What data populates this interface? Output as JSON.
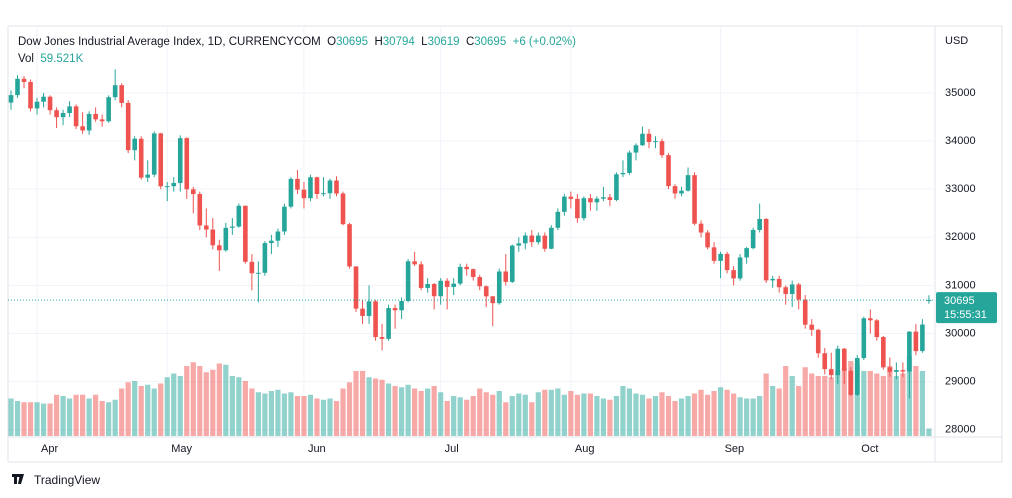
{
  "chart_data": {
    "type": "candlestick",
    "title": "Dow Jones Industrial Average Index, 1D, CURRENCYCOM",
    "ohlc_prefixes": [
      "O",
      "H",
      "L",
      "C"
    ],
    "change_label": "+6 (+0.02%)",
    "y_unit": "USD",
    "countdown": "15:55:31",
    "up_color": "#26a69a",
    "down_color": "#ef5350",
    "grid": true,
    "ylim": [
      27870,
      36350
    ],
    "yticks": [
      28000,
      29000,
      30000,
      31000,
      32000,
      33000,
      34000,
      35000
    ],
    "categories": [
      null,
      null,
      null,
      null,
      "Apr",
      null,
      null,
      null,
      null,
      null,
      null,
      null,
      null,
      null,
      null,
      null,
      null,
      null,
      null,
      null,
      null,
      null,
      null,
      null,
      "May",
      null,
      null,
      null,
      null,
      null,
      null,
      null,
      null,
      null,
      null,
      null,
      null,
      null,
      null,
      null,
      null,
      null,
      null,
      null,
      null,
      "Jun",
      null,
      null,
      null,
      null,
      null,
      null,
      null,
      null,
      null,
      null,
      null,
      null,
      null,
      null,
      null,
      null,
      null,
      null,
      null,
      null,
      "Jul",
      null,
      null,
      null,
      null,
      null,
      null,
      null,
      null,
      null,
      null,
      null,
      null,
      null,
      null,
      null,
      null,
      null,
      null,
      null,
      "Aug",
      null,
      null,
      null,
      null,
      null,
      null,
      null,
      null,
      null,
      null,
      null,
      null,
      null,
      null,
      null,
      null,
      null,
      null,
      null,
      null,
      null,
      null,
      "Sep",
      null,
      null,
      null,
      null,
      null,
      null,
      null,
      null,
      null,
      null,
      null,
      null,
      null,
      null,
      null,
      null,
      null,
      null,
      null,
      null,
      "Oct",
      null,
      null,
      null,
      null,
      null,
      null,
      null,
      null,
      null,
      null,
      null
    ],
    "open": [
      34800,
      34955,
      35294,
      35229,
      34678,
      34818,
      34922,
      34641,
      34497,
      34583,
      34721,
      34308,
      34220,
      34564,
      34451,
      34411,
      34912,
      35161,
      34793,
      33811,
      34049,
      33240,
      33302,
      34160,
      33061,
      33062,
      33129,
      34061,
      32998,
      32899,
      32246,
      32161,
      31834,
      31730,
      32197,
      32223,
      32655,
      31490,
      31253,
      31262,
      31880,
      31929,
      32120,
      32637,
      33213,
      32990,
      32813,
      33248,
      32900,
      32916,
      33180,
      32910,
      32273,
      31393,
      30517,
      30365,
      30668,
      29927,
      29889,
      30530,
      30483,
      30677,
      31501,
      31439,
      30947,
      31029,
      30775,
      31097,
      30968,
      31037,
      31385,
      31338,
      31174,
      30982,
      30773,
      30631,
      31289,
      31073,
      31827,
      31875,
      32036,
      31899,
      32035,
      31762,
      32198,
      32529,
      32845,
      32798,
      32397,
      32813,
      32727,
      32803,
      32833,
      32775,
      33310,
      33337,
      33761,
      33913,
      34152,
      33981,
      33999,
      33707,
      33064,
      32910,
      32969,
      33292,
      32283,
      32099,
      31791,
      31510,
      31656,
      31318,
      31145,
      31581,
      31775,
      32152,
      32381,
      31105,
      31135,
      30962,
      30822,
      31020,
      30706,
      30184,
      30077,
      29590,
      29260,
      29135,
      29684,
      29226,
      28726,
      29490,
      30317,
      30274,
      29927,
      29297,
      29203,
      29240,
      29211,
      30039,
      29635,
      30695
    ],
    "high": [
      35050,
      35370,
      35350,
      35280,
      34900,
      35000,
      34950,
      34700,
      34650,
      34830,
      34760,
      34600,
      34620,
      34700,
      34550,
      34950,
      35490,
      35200,
      34850,
      34100,
      34100,
      33600,
      34200,
      34170,
      33150,
      33250,
      34120,
      34080,
      33050,
      32950,
      32600,
      32400,
      31950,
      32300,
      32400,
      32700,
      32660,
      31650,
      31500,
      31920,
      32050,
      32180,
      32700,
      33250,
      33400,
      33150,
      33300,
      33260,
      33250,
      33220,
      33270,
      32950,
      32300,
      31400,
      30700,
      31000,
      30700,
      30200,
      30600,
      30600,
      30750,
      31550,
      31700,
      31500,
      31150,
      31050,
      31150,
      31150,
      31150,
      31450,
      31450,
      31350,
      31220,
      31000,
      30780,
      31350,
      31650,
      31850,
      32000,
      32100,
      32150,
      32100,
      32100,
      32250,
      32600,
      32900,
      32950,
      32900,
      32850,
      32900,
      32850,
      33050,
      32900,
      33350,
      33600,
      33800,
      33950,
      34300,
      34250,
      34100,
      34050,
      33750,
      33100,
      33050,
      33450,
      33350,
      32350,
      32150,
      31900,
      31700,
      31700,
      31400,
      31650,
      31800,
      32200,
      32700,
      32400,
      31200,
      31200,
      31000,
      31100,
      31050,
      30800,
      30300,
      30100,
      29700,
      29600,
      29750,
      29700,
      29300,
      29550,
      30350,
      30500,
      30300,
      29950,
      29500,
      29400,
      29400,
      30050,
      30200,
      30300,
      30794
    ],
    "low": [
      34650,
      34900,
      35100,
      34620,
      34550,
      34700,
      34550,
      34270,
      34330,
      34500,
      34250,
      34150,
      34130,
      34400,
      34300,
      34380,
      34850,
      34700,
      33750,
      33600,
      33200,
      33150,
      33250,
      33000,
      32750,
      32950,
      32950,
      32800,
      32500,
      32150,
      32000,
      31750,
      31300,
      31700,
      32050,
      32200,
      31450,
      30900,
      30650,
      31200,
      31650,
      31800,
      32050,
      32600,
      32900,
      32600,
      32750,
      32800,
      32850,
      32800,
      32850,
      32250,
      31350,
      30450,
      30200,
      30200,
      29850,
      29650,
      29850,
      30100,
      30300,
      30650,
      31400,
      30900,
      30850,
      30500,
      30600,
      30500,
      30800,
      31000,
      31200,
      31100,
      30900,
      30550,
      30150,
      30600,
      31000,
      31050,
      31700,
      31750,
      31800,
      31850,
      31700,
      31750,
      32150,
      32450,
      32600,
      32300,
      32350,
      32550,
      32550,
      32750,
      32650,
      32750,
      33250,
      33300,
      33600,
      33900,
      33850,
      33850,
      33650,
      33000,
      32800,
      32850,
      32950,
      32250,
      32000,
      31750,
      31450,
      31150,
      31250,
      31000,
      31100,
      31450,
      31750,
      32100,
      31050,
      30950,
      30850,
      30600,
      30550,
      30500,
      30100,
      29950,
      29500,
      29150,
      29050,
      28950,
      28950,
      28700,
      28700,
      29450,
      30000,
      29850,
      29250,
      29100,
      29050,
      29100,
      28650,
      29550,
      29600,
      30619
    ],
    "close": [
      34955,
      35294,
      35229,
      34678,
      34818,
      34922,
      34641,
      34497,
      34583,
      34721,
      34308,
      34220,
      34564,
      34451,
      34411,
      34912,
      35161,
      34793,
      33811,
      34049,
      33240,
      33302,
      34160,
      33061,
      33062,
      33129,
      34061,
      32998,
      32899,
      32246,
      32161,
      31834,
      31730,
      32197,
      32223,
      32655,
      31490,
      31253,
      31262,
      31880,
      31929,
      32120,
      32637,
      33213,
      32990,
      32813,
      33248,
      32900,
      32916,
      33180,
      32910,
      32273,
      31393,
      30517,
      30365,
      30668,
      29927,
      29889,
      30530,
      30483,
      30677,
      31501,
      31439,
      30947,
      31029,
      30775,
      31097,
      30968,
      31037,
      31385,
      31338,
      31174,
      30982,
      30773,
      30631,
      31289,
      31073,
      31827,
      31875,
      32036,
      31899,
      32035,
      31762,
      32198,
      32529,
      32845,
      32798,
      32397,
      32813,
      32727,
      32803,
      32833,
      32775,
      33310,
      33337,
      33761,
      33913,
      34152,
      33981,
      33999,
      33707,
      33064,
      32910,
      32969,
      33292,
      32283,
      32099,
      31791,
      31510,
      31656,
      31318,
      31145,
      31581,
      31775,
      32152,
      32381,
      31105,
      31135,
      30962,
      30822,
      31020,
      30706,
      30184,
      30077,
      29590,
      29260,
      29135,
      29684,
      29226,
      28726,
      29490,
      30317,
      30274,
      29927,
      29297,
      29203,
      29240,
      29211,
      30039,
      29635,
      30186,
      30695
    ],
    "volume": {
      "name": "Vol",
      "last_label": "59.521K",
      "values": [
        300,
        280,
        270,
        270,
        270,
        260,
        260,
        330,
        320,
        300,
        330,
        330,
        300,
        330,
        280,
        270,
        290,
        380,
        430,
        440,
        400,
        410,
        380,
        420,
        470,
        500,
        480,
        560,
        590,
        560,
        510,
        530,
        580,
        570,
        480,
        470,
        440,
        380,
        350,
        340,
        360,
        370,
        340,
        350,
        320,
        320,
        330,
        300,
        290,
        300,
        280,
        380,
        430,
        520,
        520,
        470,
        460,
        450,
        420,
        400,
        390,
        410,
        380,
        360,
        380,
        400,
        350,
        280,
        320,
        310,
        290,
        320,
        380,
        350,
        330,
        360,
        270,
        320,
        340,
        330,
        270,
        350,
        370,
        370,
        380,
        330,
        360,
        330,
        340,
        340,
        320,
        300,
        290,
        320,
        400,
        380,
        340,
        330,
        300,
        320,
        350,
        320,
        280,
        300,
        320,
        340,
        370,
        330,
        360,
        390,
        370,
        340,
        310,
        300,
        300,
        320,
        500,
        400,
        380,
        560,
        480,
        400,
        550,
        500,
        480,
        480,
        470,
        520,
        540,
        600,
        580,
        520,
        520,
        500,
        480,
        560,
        480,
        500,
        640,
        560,
        520,
        59.521
      ]
    }
  },
  "footer": {
    "brand": "TradingView"
  }
}
